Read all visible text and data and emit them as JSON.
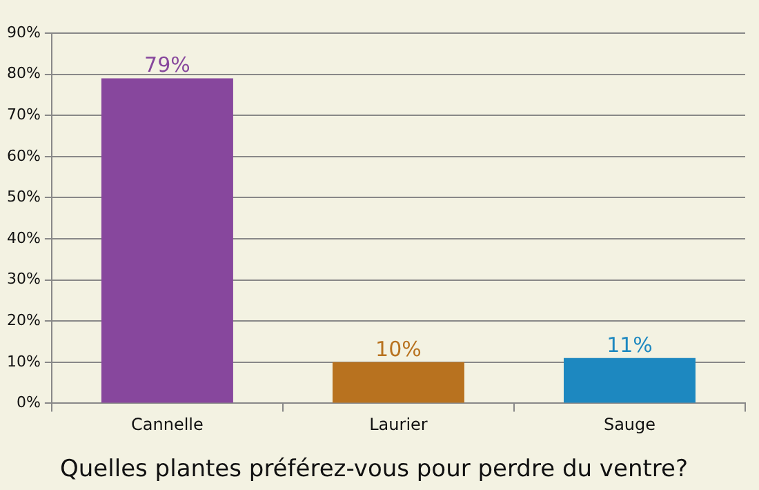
{
  "chart_data": {
    "type": "bar",
    "title": "Quelles plantes préférez-vous pour perdre du ventre?",
    "categories": [
      "Cannelle",
      "Laurier",
      "Sauge"
    ],
    "values": [
      79,
      10,
      11
    ],
    "colors": [
      "#87479d",
      "#b8721f",
      "#1d88c0"
    ],
    "value_labels": [
      "79%",
      "10%",
      "11%"
    ],
    "ylim": [
      0,
      90
    ],
    "yticks": [
      {
        "value": 0,
        "label": "0%"
      },
      {
        "value": 10,
        "label": "10%"
      },
      {
        "value": 20,
        "label": "20%"
      },
      {
        "value": 30,
        "label": "30%"
      },
      {
        "value": 40,
        "label": "40%"
      },
      {
        "value": 50,
        "label": "50%"
      },
      {
        "value": 60,
        "label": "60%"
      },
      {
        "value": 70,
        "label": "70%"
      },
      {
        "value": 80,
        "label": "80%"
      },
      {
        "value": 90,
        "label": "90%"
      }
    ],
    "grid": "y",
    "legend": false
  }
}
